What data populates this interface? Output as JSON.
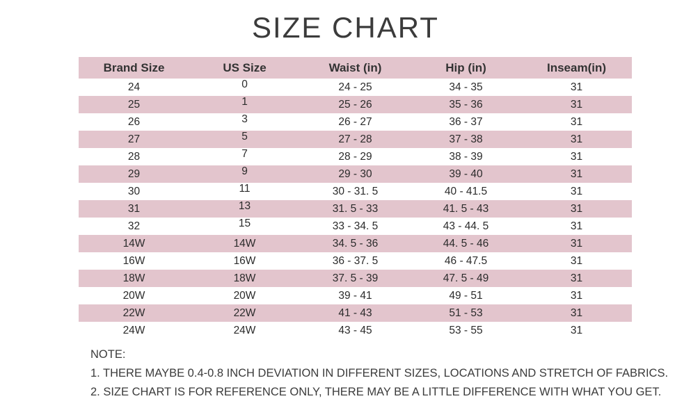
{
  "page": {
    "title": "SIZE CHART"
  },
  "chart_data": {
    "type": "table",
    "title": "SIZE CHART",
    "columns": [
      "Brand Size",
      "US Size",
      "Waist (in)",
      "Hip (in)",
      "Inseam(in)"
    ],
    "rows": [
      [
        "24",
        "0",
        "24 - 25",
        "34 - 35",
        "31"
      ],
      [
        "25",
        "1",
        "25 - 26",
        "35 - 36",
        "31"
      ],
      [
        "26",
        "3",
        "26 - 27",
        "36 - 37",
        "31"
      ],
      [
        "27",
        "5",
        "27 - 28",
        "37 - 38",
        "31"
      ],
      [
        "28",
        "7",
        "28 - 29",
        "38 - 39",
        "31"
      ],
      [
        "29",
        "9",
        "29 - 30",
        "39 - 40",
        "31"
      ],
      [
        "30",
        "11",
        "30 - 31. 5",
        "40 - 41.5",
        "31"
      ],
      [
        "31",
        "13",
        "31. 5 - 33",
        "41. 5 - 43",
        "31"
      ],
      [
        "32",
        "15",
        "33 - 34. 5",
        "43 - 44. 5",
        "31"
      ],
      [
        "14W",
        "14W",
        "34. 5 - 36",
        "44. 5 - 46",
        "31"
      ],
      [
        "16W",
        "16W",
        "36 - 37. 5",
        "46 - 47.5",
        "31"
      ],
      [
        "18W",
        "18W",
        "37. 5 - 39",
        "47. 5 - 49",
        "31"
      ],
      [
        "20W",
        "20W",
        "39 - 41",
        "49 - 51",
        "31"
      ],
      [
        "22W",
        "22W",
        "41 - 43",
        "51 - 53",
        "31"
      ],
      [
        "24W",
        "24W",
        "43 - 45",
        "53 - 55",
        "31"
      ]
    ]
  },
  "notes": {
    "label": "NOTE:",
    "items": [
      "1. THERE MAYBE 0.4-0.8 INCH DEVIATION IN DIFFERENT SIZES, LOCATIONS AND STRETCH OF FABRICS.",
      "2. SIZE CHART IS FOR REFERENCE ONLY, THERE MAY BE A LITTLE DIFFERENCE WITH WHAT YOU GET."
    ]
  },
  "colors": {
    "row_pink": "#e3c5cd",
    "text_dark": "#2b2b2b",
    "heading_gray": "#3b3b3b"
  }
}
